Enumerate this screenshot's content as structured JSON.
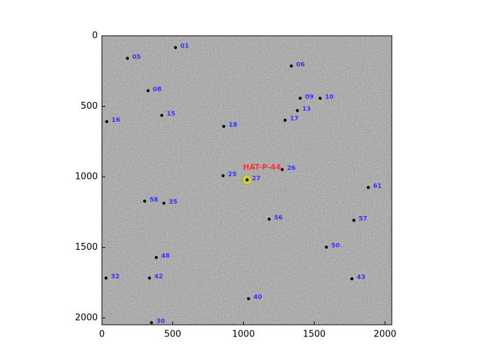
{
  "chart_data": {
    "type": "image",
    "xlim": [
      0,
      2048
    ],
    "ylim": [
      2048,
      0
    ],
    "xticks": [
      0,
      500,
      1000,
      1500,
      2000
    ],
    "yticks": [
      0,
      500,
      1000,
      1500,
      2000
    ],
    "stars": {
      "labels": [
        "01",
        "05",
        "06",
        "08",
        "09",
        "10",
        "13",
        "15",
        "16",
        "17",
        "18",
        "25",
        "26",
        "27",
        "61",
        "58",
        "35",
        "56",
        "57",
        "50",
        "48",
        "32",
        "42",
        "43",
        "40",
        "30"
      ],
      "x": [
        520,
        180,
        1338,
        326,
        1401,
        1542,
        1381,
        423,
        34,
        1294,
        861,
        856,
        1274,
        1026,
        1882,
        302,
        438,
        1182,
        1780,
        1586,
        384,
        29,
        336,
        1766,
        1036,
        350
      ],
      "y": [
        83,
        160,
        214,
        389,
        443,
        443,
        530,
        564,
        608,
        598,
        642,
        992,
        948,
        1021,
        1075,
        1172,
        1187,
        1299,
        1308,
        1498,
        1571,
        1717,
        1717,
        1722,
        1863,
        2033
      ]
    },
    "label_color": "#3333ff",
    "highlight": {
      "label": "HAT-P-44",
      "x": 1026,
      "y": 1021,
      "color": "#ff3333"
    }
  }
}
